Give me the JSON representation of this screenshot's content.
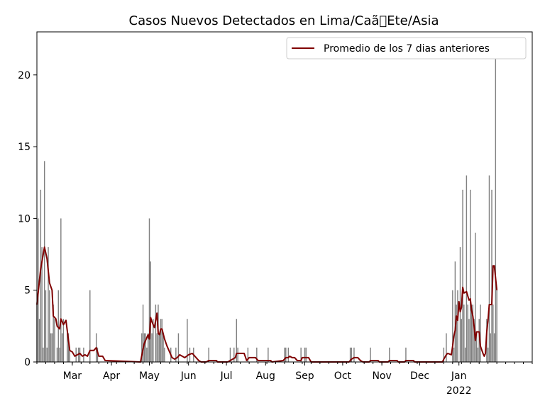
{
  "chart_data": {
    "type": "bar",
    "title": "Casos Nuevos Detectados en Lima/Caã\u0000Ete/Asia",
    "xlabel": "",
    "ylabel": "",
    "ylim": [
      0,
      23
    ],
    "x_range": [
      "2021-02-01",
      "2022-02-28"
    ],
    "y_ticks": [
      0,
      5,
      10,
      15,
      20
    ],
    "x_ticks": [
      {
        "date": "2021-03-01",
        "label": "Mar",
        "sublabel": ""
      },
      {
        "date": "2021-04-01",
        "label": "Apr",
        "sublabel": ""
      },
      {
        "date": "2021-05-01",
        "label": "May",
        "sublabel": ""
      },
      {
        "date": "2021-06-01",
        "label": "Jun",
        "sublabel": ""
      },
      {
        "date": "2021-07-01",
        "label": "Jul",
        "sublabel": ""
      },
      {
        "date": "2021-08-01",
        "label": "Aug",
        "sublabel": ""
      },
      {
        "date": "2021-09-01",
        "label": "Sep",
        "sublabel": ""
      },
      {
        "date": "2021-10-01",
        "label": "Oct",
        "sublabel": ""
      },
      {
        "date": "2021-11-01",
        "label": "Nov",
        "sublabel": ""
      },
      {
        "date": "2021-12-01",
        "label": "Dec",
        "sublabel": ""
      },
      {
        "date": "2022-01-01",
        "label": "Jan",
        "sublabel": "2022"
      }
    ],
    "legend": {
      "position": "top-right",
      "entries": [
        {
          "label": "Promedio de los 7 dias anteriores",
          "color": "#800000"
        }
      ]
    },
    "grid": false,
    "colors": {
      "bars": "#808080",
      "line": "#800000"
    },
    "series": [
      {
        "type": "bar",
        "points": [
          [
            "2021-02-01",
            4
          ],
          [
            "2021-02-02",
            10
          ],
          [
            "2021-02-03",
            3
          ],
          [
            "2021-02-04",
            12
          ],
          [
            "2021-02-05",
            8
          ],
          [
            "2021-02-06",
            1
          ],
          [
            "2021-02-07",
            14
          ],
          [
            "2021-02-08",
            5
          ],
          [
            "2021-02-09",
            1
          ],
          [
            "2021-02-10",
            8
          ],
          [
            "2021-02-11",
            5
          ],
          [
            "2021-02-12",
            2
          ],
          [
            "2021-02-13",
            2
          ],
          [
            "2021-02-14",
            4
          ],
          [
            "2021-02-15",
            3
          ],
          [
            "2021-02-17",
            1
          ],
          [
            "2021-02-18",
            5
          ],
          [
            "2021-02-19",
            1
          ],
          [
            "2021-02-20",
            10
          ],
          [
            "2021-02-21",
            2
          ],
          [
            "2021-02-22",
            3
          ],
          [
            "2021-02-25",
            2
          ],
          [
            "2021-02-26",
            2
          ],
          [
            "2021-02-27",
            1
          ],
          [
            "2021-03-04",
            1
          ],
          [
            "2021-03-06",
            1
          ],
          [
            "2021-03-07",
            1
          ],
          [
            "2021-03-10",
            1
          ],
          [
            "2021-03-15",
            5
          ],
          [
            "2021-03-20",
            2
          ],
          [
            "2021-03-21",
            1
          ],
          [
            "2021-04-25",
            2
          ],
          [
            "2021-04-26",
            4
          ],
          [
            "2021-04-27",
            2
          ],
          [
            "2021-04-28",
            2
          ],
          [
            "2021-04-29",
            1
          ],
          [
            "2021-04-30",
            2
          ],
          [
            "2021-05-01",
            10
          ],
          [
            "2021-05-02",
            7
          ],
          [
            "2021-05-03",
            2
          ],
          [
            "2021-05-04",
            3
          ],
          [
            "2021-05-06",
            4
          ],
          [
            "2021-05-07",
            2
          ],
          [
            "2021-05-08",
            4
          ],
          [
            "2021-05-09",
            2
          ],
          [
            "2021-05-10",
            3
          ],
          [
            "2021-05-11",
            3
          ],
          [
            "2021-05-12",
            2
          ],
          [
            "2021-05-13",
            1
          ],
          [
            "2021-05-18",
            1
          ],
          [
            "2021-05-22",
            1
          ],
          [
            "2021-05-24",
            2
          ],
          [
            "2021-05-31",
            3
          ],
          [
            "2021-06-02",
            1
          ],
          [
            "2021-06-05",
            1
          ],
          [
            "2021-06-17",
            1
          ],
          [
            "2021-07-04",
            1
          ],
          [
            "2021-07-07",
            1
          ],
          [
            "2021-07-09",
            3
          ],
          [
            "2021-07-10",
            1
          ],
          [
            "2021-07-18",
            1
          ],
          [
            "2021-07-25",
            1
          ],
          [
            "2021-08-03",
            1
          ],
          [
            "2021-08-16",
            1
          ],
          [
            "2021-08-17",
            1
          ],
          [
            "2021-08-19",
            1
          ],
          [
            "2021-08-29",
            1
          ],
          [
            "2021-09-01",
            1
          ],
          [
            "2021-09-02",
            1
          ],
          [
            "2021-10-07",
            1
          ],
          [
            "2021-10-08",
            1
          ],
          [
            "2021-10-10",
            1
          ],
          [
            "2021-10-23",
            1
          ],
          [
            "2021-11-07",
            1
          ],
          [
            "2021-11-20",
            1
          ],
          [
            "2021-12-20",
            1
          ],
          [
            "2021-12-22",
            2
          ],
          [
            "2021-12-27",
            5
          ],
          [
            "2021-12-28",
            1
          ],
          [
            "2021-12-29",
            7
          ],
          [
            "2021-12-30",
            4
          ],
          [
            "2021-12-31",
            5
          ],
          [
            "2022-01-02",
            8
          ],
          [
            "2022-01-03",
            3
          ],
          [
            "2022-01-04",
            12
          ],
          [
            "2022-01-05",
            4
          ],
          [
            "2022-01-06",
            1
          ],
          [
            "2022-01-07",
            13
          ],
          [
            "2022-01-08",
            4
          ],
          [
            "2022-01-09",
            3
          ],
          [
            "2022-01-10",
            12
          ],
          [
            "2022-01-11",
            4
          ],
          [
            "2022-01-12",
            4
          ],
          [
            "2022-01-13",
            3
          ],
          [
            "2022-01-14",
            9
          ],
          [
            "2022-01-15",
            2
          ],
          [
            "2022-01-16",
            1
          ],
          [
            "2022-01-17",
            3
          ],
          [
            "2022-01-18",
            4
          ],
          [
            "2022-01-23",
            3
          ],
          [
            "2022-01-24",
            1
          ],
          [
            "2022-01-25",
            13
          ],
          [
            "2022-01-26",
            2
          ],
          [
            "2022-01-27",
            12
          ],
          [
            "2022-01-28",
            4
          ],
          [
            "2022-01-29",
            2
          ],
          [
            "2022-01-30",
            22
          ],
          [
            "2022-01-31",
            5
          ]
        ]
      },
      {
        "type": "line",
        "name": "Promedio de los 7 dias anteriores",
        "points": [
          [
            "2021-02-01",
            4
          ],
          [
            "2021-02-04",
            6.5
          ],
          [
            "2021-02-07",
            8
          ],
          [
            "2021-02-09",
            7.2
          ],
          [
            "2021-02-11",
            5.5
          ],
          [
            "2021-02-13",
            5
          ],
          [
            "2021-02-14",
            3.2
          ],
          [
            "2021-02-16",
            3
          ],
          [
            "2021-02-17",
            2.5
          ],
          [
            "2021-02-19",
            2.3
          ],
          [
            "2021-02-20",
            3
          ],
          [
            "2021-02-22",
            2.6
          ],
          [
            "2021-02-24",
            2.9
          ],
          [
            "2021-02-25",
            2.2
          ],
          [
            "2021-02-27",
            0.8
          ],
          [
            "2021-03-01",
            0.7
          ],
          [
            "2021-03-03",
            0.4
          ],
          [
            "2021-03-05",
            0.5
          ],
          [
            "2021-03-07",
            0.6
          ],
          [
            "2021-03-09",
            0.4
          ],
          [
            "2021-03-11",
            0.5
          ],
          [
            "2021-03-13",
            0.4
          ],
          [
            "2021-03-15",
            0.8
          ],
          [
            "2021-03-18",
            0.8
          ],
          [
            "2021-03-20",
            1
          ],
          [
            "2021-03-22",
            0.4
          ],
          [
            "2021-03-25",
            0.4
          ],
          [
            "2021-03-27",
            0.1
          ],
          [
            "2021-04-24",
            0
          ],
          [
            "2021-04-26",
            0.9
          ],
          [
            "2021-04-27",
            1.3
          ],
          [
            "2021-04-29",
            1.7
          ],
          [
            "2021-04-30",
            1.9
          ],
          [
            "2021-05-01",
            1.6
          ],
          [
            "2021-05-02",
            3.1
          ],
          [
            "2021-05-03",
            2.8
          ],
          [
            "2021-05-05",
            2.4
          ],
          [
            "2021-05-07",
            3.4
          ],
          [
            "2021-05-08",
            2.0
          ],
          [
            "2021-05-09",
            1.9
          ],
          [
            "2021-05-10",
            2.3
          ],
          [
            "2021-05-11",
            2.3
          ],
          [
            "2021-05-13",
            1.6
          ],
          [
            "2021-05-15",
            1.1
          ],
          [
            "2021-05-17",
            0.7
          ],
          [
            "2021-05-19",
            0.3
          ],
          [
            "2021-05-21",
            0.2
          ],
          [
            "2021-05-23",
            0.3
          ],
          [
            "2021-05-25",
            0.5
          ],
          [
            "2021-05-27",
            0.4
          ],
          [
            "2021-05-29",
            0.3
          ],
          [
            "2021-06-01",
            0.5
          ],
          [
            "2021-06-04",
            0.6
          ],
          [
            "2021-06-06",
            0.4
          ],
          [
            "2021-06-09",
            0.1
          ],
          [
            "2021-06-11",
            0
          ],
          [
            "2021-06-15",
            0
          ],
          [
            "2021-06-17",
            0.1
          ],
          [
            "2021-06-23",
            0.1
          ],
          [
            "2021-06-24",
            0
          ],
          [
            "2021-07-02",
            0
          ],
          [
            "2021-07-04",
            0.1
          ],
          [
            "2021-07-08",
            0.3
          ],
          [
            "2021-07-09",
            0.6
          ],
          [
            "2021-07-15",
            0.6
          ],
          [
            "2021-07-17",
            0.1
          ],
          [
            "2021-07-19",
            0.3
          ],
          [
            "2021-07-24",
            0.3
          ],
          [
            "2021-07-26",
            0.1
          ],
          [
            "2021-08-02",
            0.1
          ],
          [
            "2021-08-05",
            0.1
          ],
          [
            "2021-08-06",
            0
          ],
          [
            "2021-08-15",
            0.1
          ],
          [
            "2021-08-17",
            0.3
          ],
          [
            "2021-08-19",
            0.3
          ],
          [
            "2021-08-20",
            0.4
          ],
          [
            "2021-08-22",
            0.3
          ],
          [
            "2021-08-24",
            0.3
          ],
          [
            "2021-08-26",
            0.1
          ],
          [
            "2021-08-29",
            0.1
          ],
          [
            "2021-08-30",
            0.3
          ],
          [
            "2021-09-04",
            0.3
          ],
          [
            "2021-09-06",
            0
          ],
          [
            "2021-10-06",
            0
          ],
          [
            "2021-10-08",
            0.2
          ],
          [
            "2021-10-10",
            0.3
          ],
          [
            "2021-10-13",
            0.3
          ],
          [
            "2021-10-15",
            0.1
          ],
          [
            "2021-10-17",
            0
          ],
          [
            "2021-10-22",
            0
          ],
          [
            "2021-10-23",
            0.1
          ],
          [
            "2021-10-29",
            0.1
          ],
          [
            "2021-10-30",
            0
          ],
          [
            "2021-11-06",
            0
          ],
          [
            "2021-11-07",
            0.1
          ],
          [
            "2021-11-13",
            0.1
          ],
          [
            "2021-11-14",
            0
          ],
          [
            "2021-11-19",
            0
          ],
          [
            "2021-11-20",
            0.1
          ],
          [
            "2021-11-26",
            0.1
          ],
          [
            "2021-11-27",
            0
          ],
          [
            "2021-12-19",
            0
          ],
          [
            "2021-12-20",
            0.2
          ],
          [
            "2021-12-22",
            0.5
          ],
          [
            "2021-12-23",
            0.6
          ],
          [
            "2021-12-26",
            0.5
          ],
          [
            "2021-12-27",
            1.1
          ],
          [
            "2021-12-28",
            1.8
          ],
          [
            "2021-12-29",
            2.2
          ],
          [
            "2021-12-30",
            3.2
          ],
          [
            "2021-12-31",
            2.9
          ],
          [
            "2022-01-01",
            4.2
          ],
          [
            "2022-01-02",
            3.5
          ],
          [
            "2022-01-03",
            3.8
          ],
          [
            "2022-01-04",
            5.2
          ],
          [
            "2022-01-05",
            4.8
          ],
          [
            "2022-01-07",
            4.9
          ],
          [
            "2022-01-09",
            4.3
          ],
          [
            "2022-01-10",
            4.4
          ],
          [
            "2022-01-11",
            3.6
          ],
          [
            "2022-01-12",
            3.2
          ],
          [
            "2022-01-13",
            2.5
          ],
          [
            "2022-01-14",
            1.5
          ],
          [
            "2022-01-15",
            2.1
          ],
          [
            "2022-01-17",
            2.1
          ],
          [
            "2022-01-18",
            1.1
          ],
          [
            "2022-01-20",
            0.6
          ],
          [
            "2022-01-21",
            0.4
          ],
          [
            "2022-01-22",
            0.6
          ],
          [
            "2022-01-23",
            2.1
          ],
          [
            "2022-01-24",
            2.9
          ],
          [
            "2022-01-25",
            4
          ],
          [
            "2022-01-27",
            4
          ],
          [
            "2022-01-28",
            6.7
          ],
          [
            "2022-01-29",
            6.7
          ],
          [
            "2022-01-31",
            5
          ]
        ]
      }
    ]
  }
}
